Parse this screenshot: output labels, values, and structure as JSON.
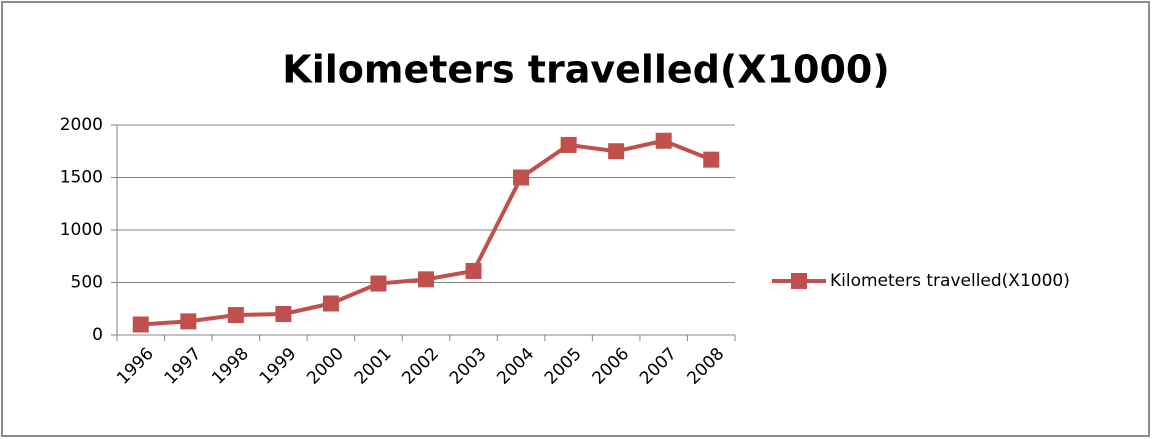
{
  "chart_data": {
    "type": "line",
    "title": "Kilometers travelled(X1000)",
    "categories": [
      "1996",
      "1997",
      "1998",
      "1999",
      "2000",
      "2001",
      "2002",
      "2003",
      "2004",
      "2005",
      "2006",
      "2007",
      "2008"
    ],
    "series": [
      {
        "name": "Kilometers travelled(X1000)",
        "color": "#c0504d",
        "values": [
          100,
          130,
          190,
          200,
          300,
          490,
          530,
          610,
          1500,
          1810,
          1750,
          1850,
          1670
        ]
      }
    ],
    "ylim": [
      0,
      2000
    ],
    "yticks": [
      0,
      500,
      1000,
      1500,
      2000
    ],
    "grid": true,
    "legend": "right"
  }
}
